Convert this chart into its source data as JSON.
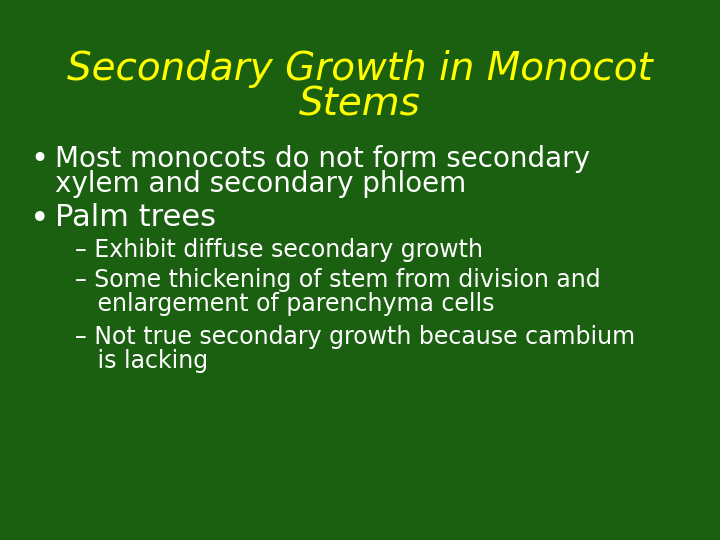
{
  "background_color": "#1a6010",
  "title_line1": "Secondary Growth in Monocot",
  "title_line2": "Stems",
  "title_color": "#ffff00",
  "title_fontsize": 28,
  "bullet1_line1": "Most monocots do not form secondary",
  "bullet1_line2": "xylem and secondary phloem",
  "bullet2_text": "Palm trees",
  "sub1_text": "– Exhibit diffuse secondary growth",
  "sub2_line1": "– Some thickening of stem from division and",
  "sub2_line2": "   enlargement of parenchyma cells",
  "sub3_line1": "– Not true secondary growth because cambium",
  "sub3_line2": "   is lacking",
  "bullet_color": "#ffffff",
  "bullet_fontsize": 20,
  "palm_fontsize": 22,
  "sub_fontsize": 17,
  "bullet_symbol": "•",
  "font_family": "DejaVu Sans"
}
